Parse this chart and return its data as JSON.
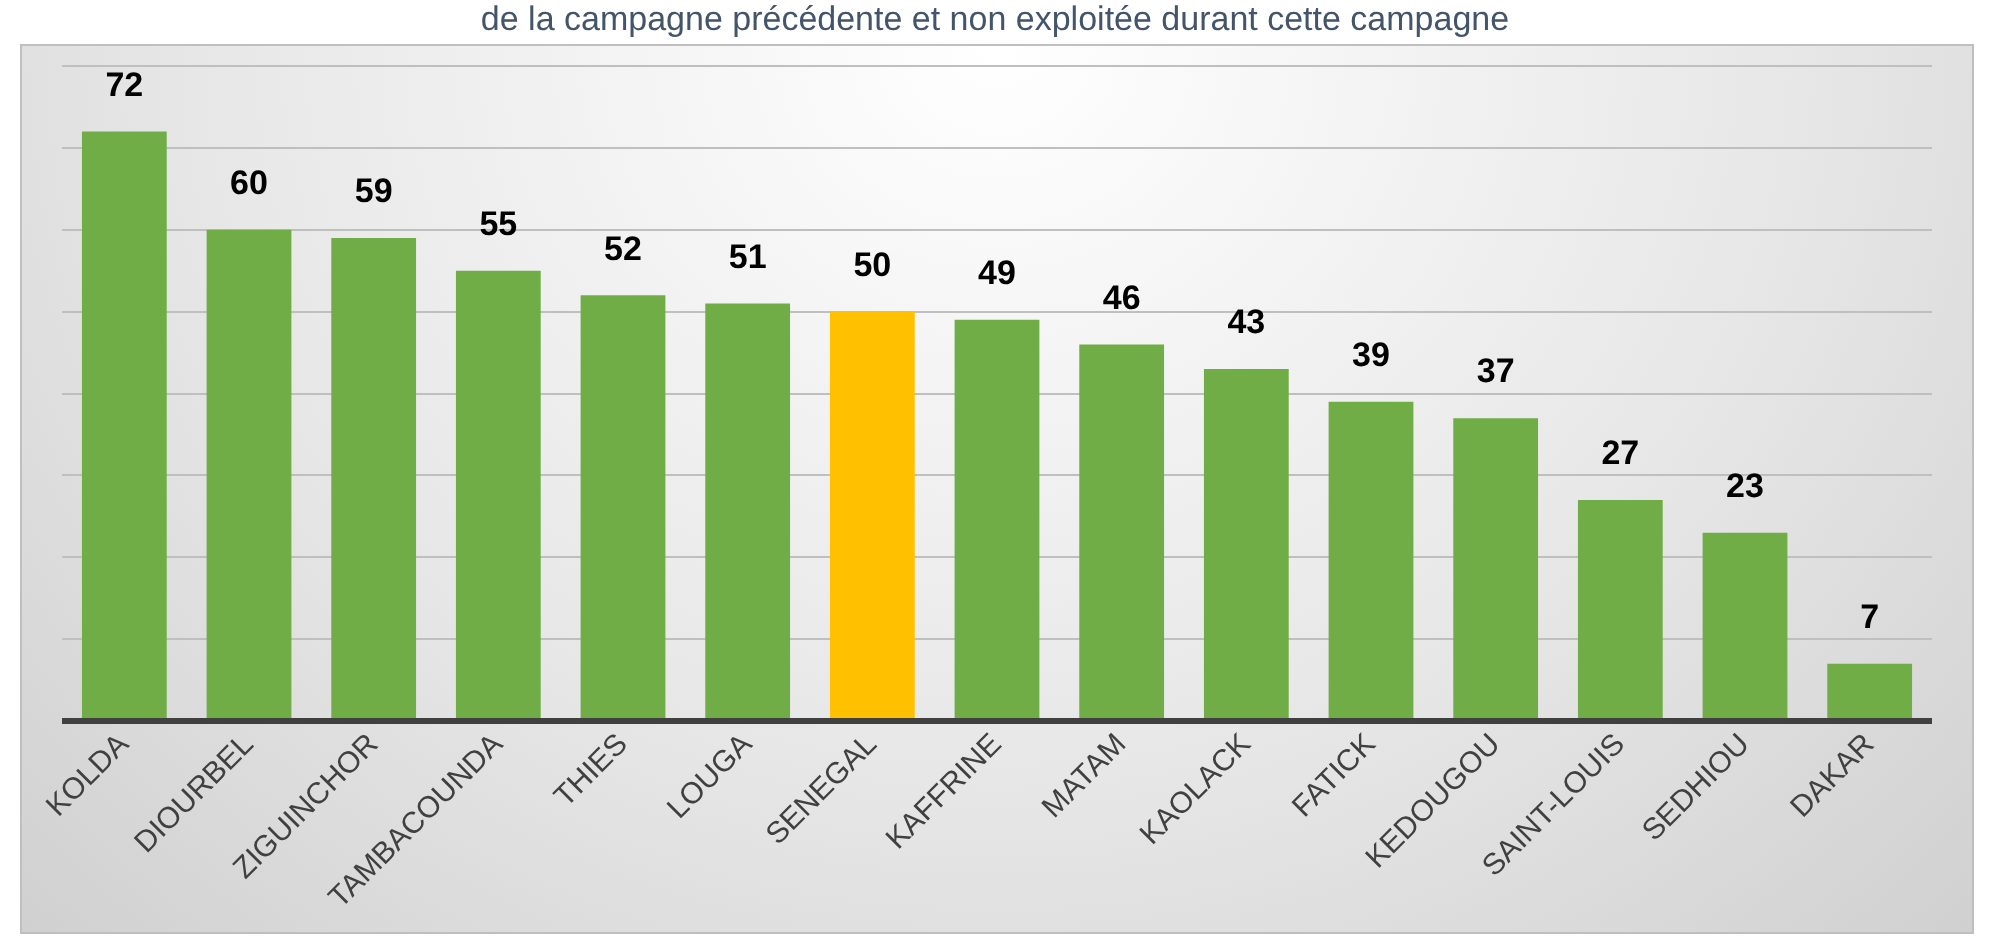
{
  "chart_data": {
    "type": "bar",
    "title": "de la campagne précédente et non exploitée durant cette campagne",
    "categories": [
      "KOLDA",
      "DIOURBEL",
      "ZIGUINCHOR",
      "TAMBACOUNDA",
      "THIES",
      "LOUGA",
      "SENEGAL",
      "KAFFRINE",
      "MATAM",
      "KAOLACK",
      "FATICK",
      "KEDOUGOU",
      "SAINT-LOUIS",
      "SEDHIOU",
      "DAKAR"
    ],
    "values": [
      72,
      60,
      59,
      55,
      52,
      51,
      50,
      49,
      46,
      43,
      39,
      37,
      27,
      23,
      7
    ],
    "colors": [
      "#70ad47",
      "#70ad47",
      "#70ad47",
      "#70ad47",
      "#70ad47",
      "#70ad47",
      "#ffc000",
      "#70ad47",
      "#70ad47",
      "#70ad47",
      "#70ad47",
      "#70ad47",
      "#70ad47",
      "#70ad47",
      "#70ad47"
    ],
    "ylim": [
      0,
      80
    ],
    "yticks": [
      {
        "value": 0,
        "label": null
      },
      {
        "value": 10,
        "label": null
      },
      {
        "value": 20,
        "label": null
      },
      {
        "value": 30,
        "label": null
      },
      {
        "value": 40,
        "label": null
      },
      {
        "value": 50,
        "label": null
      },
      {
        "value": 60,
        "label": null
      },
      {
        "value": 70,
        "label": null
      },
      {
        "value": 80,
        "label": null
      }
    ],
    "grid": "y",
    "tick_labels": "x",
    "data_labels": true,
    "legend": false
  }
}
